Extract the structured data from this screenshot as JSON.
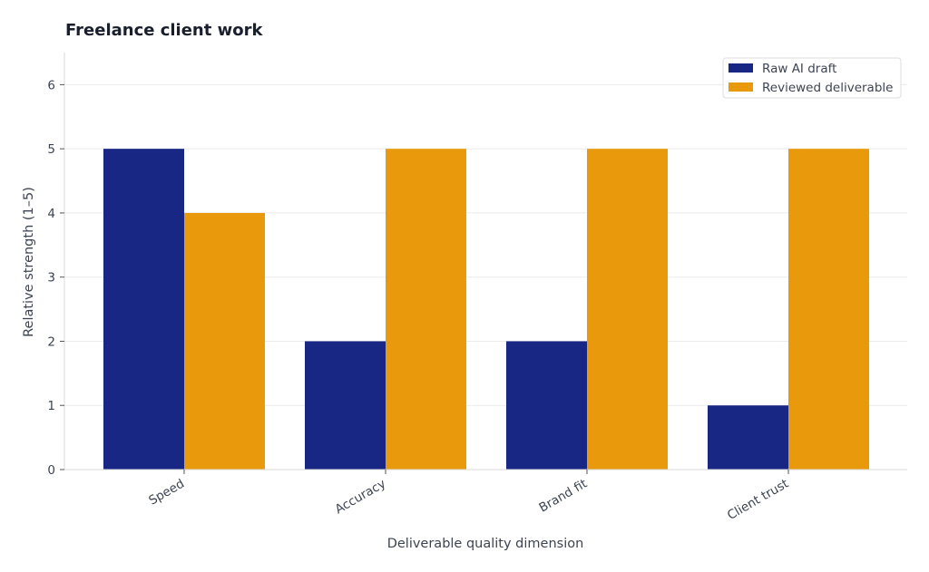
{
  "chart_data": {
    "type": "bar",
    "title": "Freelance client work",
    "xlabel": "Deliverable quality dimension",
    "ylabel": "Relative strength (1–5)",
    "categories": [
      "Speed",
      "Accuracy",
      "Brand fit",
      "Client trust"
    ],
    "series": [
      {
        "name": "Raw AI draft",
        "values": [
          5,
          2,
          2,
          1
        ],
        "color": "#172783"
      },
      {
        "name": "Reviewed deliverable",
        "values": [
          4,
          5,
          5,
          5
        ],
        "color": "#e99a0c"
      }
    ],
    "ylim": [
      0,
      6.5
    ],
    "yticks": [
      0,
      1,
      2,
      3,
      4,
      5,
      6
    ],
    "grid": true,
    "legend_position": "top-right",
    "colors": {
      "grid": "#ebebeb",
      "axis": "#d9d9d9",
      "text": "#3d4451",
      "title": "#1a1f2e"
    }
  }
}
